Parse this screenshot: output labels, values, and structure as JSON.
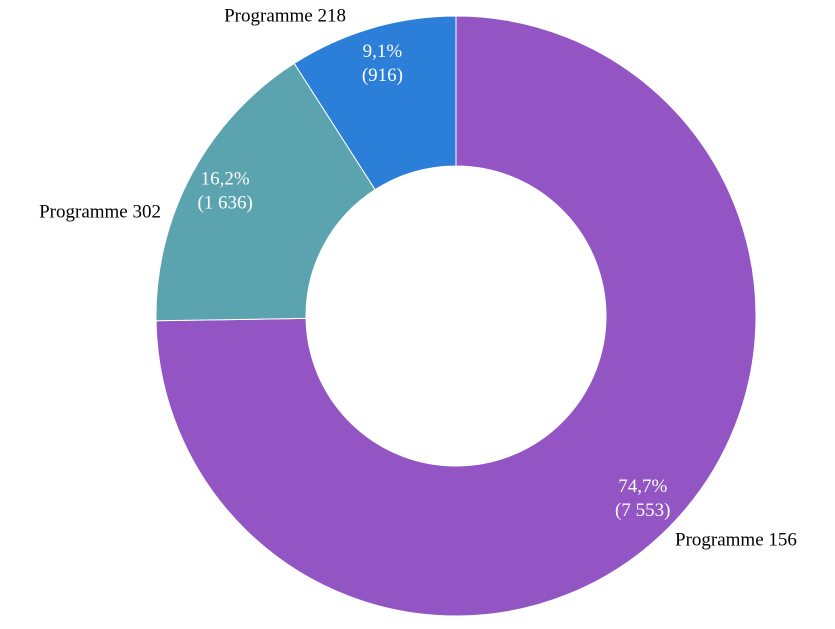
{
  "chart_data": {
    "type": "donut",
    "categories": [
      "Programme 156",
      "Programme 302",
      "Programme 218"
    ],
    "values": [
      7553,
      1636,
      916
    ],
    "value_labels": [
      "(7 553)",
      "(1 636)",
      "(916)"
    ],
    "shares": [
      74.7,
      16.2,
      9.1
    ],
    "share_labels": [
      "74,7%",
      "16,2%",
      "9,1%"
    ],
    "colors": [
      "#9355c3",
      "#5ba3ae",
      "#2b7fd9"
    ]
  }
}
